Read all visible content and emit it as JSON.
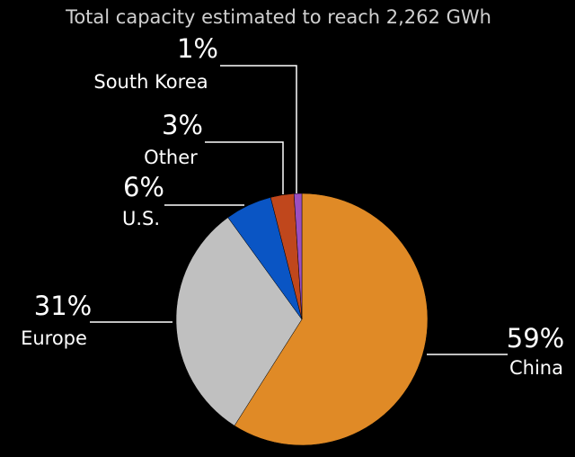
{
  "chart_data": {
    "type": "pie",
    "title": "Total capacity estimated to reach 2,262 GWh",
    "categories": [
      "China",
      "Europe",
      "U.S.",
      "Other",
      "South Korea"
    ],
    "values": [
      59,
      31,
      6,
      3,
      1
    ],
    "value_labels": [
      "59%",
      "31%",
      "6%",
      "3%",
      "1%"
    ],
    "colors": [
      "#e08a26",
      "#c0c0c0",
      "#0a55c4",
      "#c0471c",
      "#9b4fc0"
    ]
  }
}
